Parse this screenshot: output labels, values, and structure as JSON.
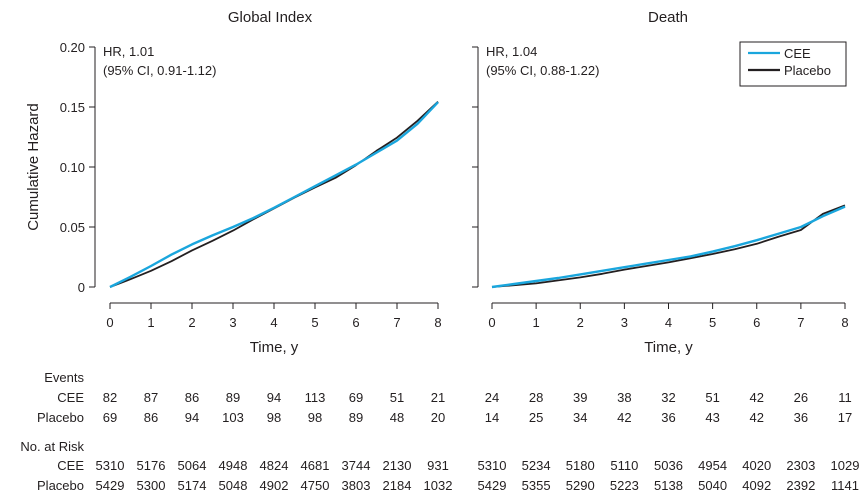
{
  "colors": {
    "cee": "#1aa6dd",
    "placebo": "#231f20",
    "axis": "#231f20"
  },
  "y_axis_label": "Cumulative Hazard",
  "x_axis_label": "Time, y",
  "series_names": [
    "CEE",
    "Placebo"
  ],
  "table": {
    "events_label": "Events",
    "risk_label": "No. at Risk",
    "row_labels": [
      "CEE",
      "Placebo"
    ]
  },
  "chart_data": [
    {
      "type": "line",
      "title": "Global Index",
      "xlabel": "Time, y",
      "ylabel": "Cumulative Hazard",
      "xlim": [
        0,
        8
      ],
      "ylim": [
        0,
        0.2
      ],
      "x_ticks": [
        0,
        1,
        2,
        3,
        4,
        5,
        6,
        7,
        8
      ],
      "y_ticks": [
        0,
        0.05,
        0.1,
        0.15,
        0.2
      ],
      "y_tick_labels": [
        "0",
        "0.05",
        "0.10",
        "0.15",
        "0.20"
      ],
      "annotation": [
        "HR, 1.01",
        "(95% CI, 0.91-1.12)"
      ],
      "legend": false,
      "series": [
        {
          "name": "CEE",
          "x": [
            0,
            0.5,
            1,
            1.5,
            2,
            2.5,
            3,
            3.5,
            4,
            4.5,
            5,
            5.5,
            6,
            6.5,
            7,
            7.5,
            8
          ],
          "y": [
            0,
            0.0085,
            0.0175,
            0.027,
            0.0355,
            0.043,
            0.05,
            0.0575,
            0.066,
            0.075,
            0.084,
            0.093,
            0.102,
            0.112,
            0.122,
            0.136,
            0.154
          ]
        },
        {
          "name": "Placebo",
          "x": [
            0,
            0.5,
            1,
            1.5,
            2,
            2.5,
            3,
            3.5,
            4,
            4.5,
            5,
            5.5,
            6,
            6.5,
            7,
            7.5,
            8
          ],
          "y": [
            0,
            0.0065,
            0.0135,
            0.0215,
            0.0305,
            0.0385,
            0.047,
            0.0565,
            0.0655,
            0.0745,
            0.083,
            0.091,
            0.1015,
            0.1135,
            0.1245,
            0.1385,
            0.1545
          ]
        }
      ],
      "events": {
        "CEE": [
          "82",
          "87",
          "86",
          "89",
          "94",
          "113",
          "69",
          "51",
          "21"
        ],
        "Placebo": [
          "69",
          "86",
          "94",
          "103",
          "98",
          "98",
          "89",
          "48",
          "20"
        ]
      },
      "at_risk": {
        "CEE": [
          "5310",
          "5176",
          "5064",
          "4948",
          "4824",
          "4681",
          "3744",
          "2130",
          "931"
        ],
        "Placebo": [
          "5429",
          "5300",
          "5174",
          "5048",
          "4902",
          "4750",
          "3803",
          "2184",
          "1032"
        ]
      }
    },
    {
      "type": "line",
      "title": "Death",
      "xlabel": "Time, y",
      "ylabel": "",
      "xlim": [
        0,
        8
      ],
      "ylim": [
        0,
        0.2
      ],
      "x_ticks": [
        0,
        1,
        2,
        3,
        4,
        5,
        6,
        7,
        8
      ],
      "y_ticks": [
        0,
        0.05,
        0.1,
        0.15,
        0.2
      ],
      "annotation": [
        "HR, 1.04",
        "(95% CI, 0.88-1.22)"
      ],
      "legend": true,
      "legend_position": "top-right",
      "series": [
        {
          "name": "CEE",
          "x": [
            0,
            0.5,
            1,
            1.5,
            2,
            2.5,
            3,
            3.5,
            4,
            4.5,
            5,
            5.5,
            6,
            6.5,
            7,
            7.5,
            8
          ],
          "y": [
            0,
            0.0025,
            0.005,
            0.0075,
            0.0105,
            0.0135,
            0.0165,
            0.0195,
            0.0225,
            0.0255,
            0.0295,
            0.034,
            0.039,
            0.0445,
            0.05,
            0.059,
            0.067
          ]
        },
        {
          "name": "Placebo",
          "x": [
            0,
            0.5,
            1,
            1.5,
            2,
            2.5,
            3,
            3.5,
            4,
            4.5,
            5,
            5.5,
            6,
            6.5,
            7,
            7.5,
            8
          ],
          "y": [
            0,
            0.0015,
            0.003,
            0.0055,
            0.008,
            0.011,
            0.0145,
            0.0175,
            0.0205,
            0.024,
            0.0275,
            0.0315,
            0.036,
            0.042,
            0.0475,
            0.061,
            0.068
          ]
        }
      ],
      "events": {
        "CEE": [
          "24",
          "28",
          "39",
          "38",
          "32",
          "51",
          "42",
          "26",
          "11"
        ],
        "Placebo": [
          "14",
          "25",
          "34",
          "42",
          "36",
          "43",
          "42",
          "36",
          "17"
        ]
      },
      "at_risk": {
        "CEE": [
          "5310",
          "5234",
          "5180",
          "5110",
          "5036",
          "4954",
          "4020",
          "2303",
          "1029"
        ],
        "Placebo": [
          "5429",
          "5355",
          "5290",
          "5223",
          "5138",
          "5040",
          "4092",
          "2392",
          "1141"
        ]
      }
    }
  ]
}
